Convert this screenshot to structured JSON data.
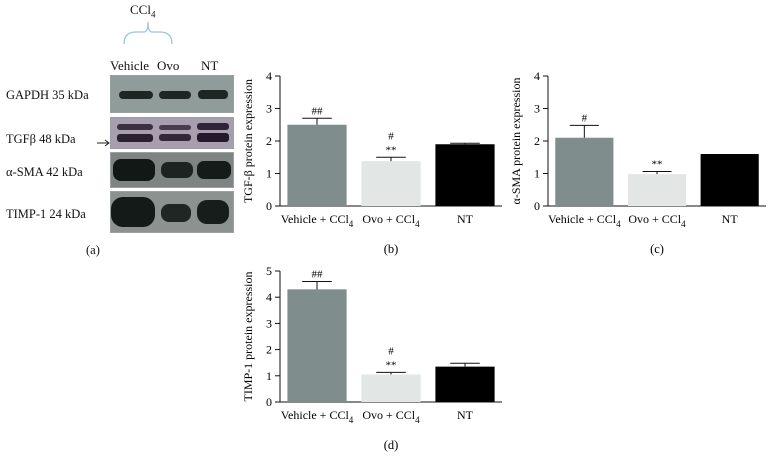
{
  "blot": {
    "condition_label": "CCl",
    "condition_sub": "4",
    "lanes": [
      "Vehicle",
      "Ovo",
      "NT"
    ],
    "rows": [
      {
        "label": "GAPDH 35 kDa",
        "bg": "#8f9c9a"
      },
      {
        "label": "TGFβ 48 kDa",
        "bg": "#a79fae"
      },
      {
        "label": "α-SMA 42 kDa",
        "bg": "#7d8481"
      },
      {
        "label": "TIMP-1 24 kDa",
        "bg": "#8b9290"
      }
    ],
    "panel_letter": "(a)"
  },
  "chart_data": [
    {
      "type": "bar",
      "panel": "(b)",
      "ylabel": "TGF-β protein expression",
      "ylim": [
        0,
        4
      ],
      "yticks": [
        0,
        1,
        2,
        3,
        4
      ],
      "categories": [
        "Vehicle + CCl",
        "Ovo + CCl",
        "NT"
      ],
      "category_subscripts": [
        "4",
        "4",
        ""
      ],
      "values": [
        2.5,
        1.38,
        1.9
      ],
      "errors": [
        0.2,
        0.12,
        0.03
      ],
      "annotations": [
        [
          "##"
        ],
        [
          "#",
          "**"
        ],
        []
      ],
      "colors": [
        "#7f8d8c",
        "#e2e7e6",
        "#000000"
      ]
    },
    {
      "type": "bar",
      "panel": "(c)",
      "ylabel": "α-SMA protein expression",
      "ylim": [
        0,
        4
      ],
      "yticks": [
        0,
        1,
        2,
        3,
        4
      ],
      "categories": [
        "Vehicle + CCl",
        "Ovo + CCl",
        "NT"
      ],
      "category_subscripts": [
        "4",
        "4",
        ""
      ],
      "values": [
        2.1,
        0.98,
        1.6
      ],
      "errors": [
        0.38,
        0.08,
        0
      ],
      "annotations": [
        [
          "#"
        ],
        [
          "**"
        ],
        []
      ],
      "colors": [
        "#7f8d8c",
        "#e2e7e6",
        "#000000"
      ]
    },
    {
      "type": "bar",
      "panel": "(d)",
      "ylabel": "TIMP-1 protein expression",
      "ylim": [
        0,
        5
      ],
      "yticks": [
        0,
        1,
        2,
        3,
        4,
        5
      ],
      "categories": [
        "Vehicle + CCl",
        "Ovo + CCl",
        "NT"
      ],
      "category_subscripts": [
        "4",
        "4",
        ""
      ],
      "values": [
        4.3,
        1.05,
        1.35
      ],
      "errors": [
        0.3,
        0.08,
        0.13
      ],
      "annotations": [
        [
          "##"
        ],
        [
          "#",
          "**"
        ],
        []
      ],
      "colors": [
        "#7f8d8c",
        "#e2e7e6",
        "#000000"
      ]
    }
  ]
}
